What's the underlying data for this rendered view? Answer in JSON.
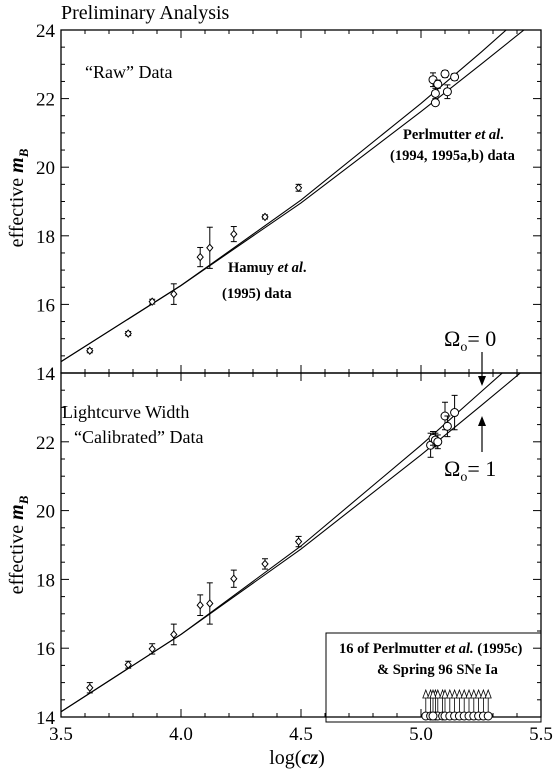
{
  "figure": {
    "header": "Preliminary Analysis",
    "xlabel": {
      "prefix": "log(",
      "var": "cz",
      "suffix": ")"
    }
  },
  "chart_data": [
    {
      "type": "scatter",
      "panel": "top",
      "ylabel": {
        "prefix": "effective ",
        "var": "m",
        "sub": "B"
      },
      "xlim": [
        3.5,
        5.5
      ],
      "ylim": [
        14,
        24
      ],
      "yticks": [
        14,
        16,
        18,
        20,
        22,
        24
      ],
      "panel_label": "“Raw” Data",
      "annotations": {
        "hamuy_1": "Hamuy ",
        "hamuy_et": "et al",
        "hamuy_dot": ".",
        "hamuy_2": "(1995) data",
        "perl_1": "Perlmutter ",
        "perl_et": "et al",
        "perl_dot": ".",
        "perl_2": "(1994, 1995a,b) data"
      },
      "series": [
        {
          "marker": "diamond",
          "points": [
            {
              "x": 3.62,
              "y": 14.65,
              "err": 0.06
            },
            {
              "x": 3.78,
              "y": 15.15,
              "err": 0.06
            },
            {
              "x": 3.88,
              "y": 16.08,
              "err": 0.07
            },
            {
              "x": 3.97,
              "y": 16.3,
              "err": 0.3
            },
            {
              "x": 4.08,
              "y": 17.38,
              "err": 0.28
            },
            {
              "x": 4.12,
              "y": 17.65,
              "err": 0.6
            },
            {
              "x": 4.22,
              "y": 18.05,
              "err": 0.22
            },
            {
              "x": 4.35,
              "y": 18.55,
              "err": 0.06
            },
            {
              "x": 4.49,
              "y": 19.4,
              "err": 0.1
            }
          ]
        },
        {
          "marker": "circle",
          "points": [
            {
              "x": 5.05,
              "y": 22.55,
              "err": 0.2
            },
            {
              "x": 5.06,
              "y": 22.15,
              "err": 0.15
            },
            {
              "x": 5.06,
              "y": 21.88,
              "err": 0.08
            },
            {
              "x": 5.07,
              "y": 22.42,
              "err": 0.12
            },
            {
              "x": 5.1,
              "y": 22.72,
              "err": 0.1
            },
            {
              "x": 5.11,
              "y": 22.2,
              "err": 0.2
            },
            {
              "x": 5.14,
              "y": 22.63,
              "err": 0.1
            }
          ]
        }
      ],
      "curves": [
        {
          "omega": 0,
          "points": [
            [
              3.5,
              14.33
            ],
            [
              4.0,
              16.55
            ],
            [
              4.5,
              19.04
            ],
            [
              5.0,
              21.86
            ],
            [
              5.25,
              23.35
            ],
            [
              5.5,
              24.9
            ]
          ]
        },
        {
          "omega": 1,
          "points": [
            [
              3.5,
              14.33
            ],
            [
              4.0,
              16.55
            ],
            [
              4.5,
              18.96
            ],
            [
              5.0,
              21.62
            ],
            [
              5.25,
              23.0
            ],
            [
              5.5,
              24.4
            ]
          ]
        }
      ]
    },
    {
      "type": "scatter",
      "panel": "bottom",
      "ylabel": {
        "prefix": "effective ",
        "var": "m",
        "sub": "B"
      },
      "xlim": [
        3.5,
        5.5
      ],
      "ylim": [
        14,
        24
      ],
      "yticks": [
        14,
        16,
        18,
        20,
        22
      ],
      "xticks": [
        3.5,
        4.0,
        4.5,
        5.0,
        5.5
      ],
      "panel_label_1": "Lightcurve Width",
      "panel_label_2": "“Calibrated” Data",
      "omega_labels": {
        "top": {
          "sym": "Ω",
          "sub": "o",
          "val": "= 0"
        },
        "bottom": {
          "sym": "Ω",
          "sub": "o",
          "val": "= 1"
        }
      },
      "legend_box": {
        "line1_a": "16 of Perlmutter ",
        "line1_et": "et al.",
        "line1_b": " (1995c)",
        "line2": "& Spring 96 SNe Ia"
      },
      "series": [
        {
          "marker": "diamond",
          "points": [
            {
              "x": 3.62,
              "y": 14.85,
              "err": 0.15
            },
            {
              "x": 3.78,
              "y": 15.52,
              "err": 0.1
            },
            {
              "x": 3.88,
              "y": 15.98,
              "err": 0.15
            },
            {
              "x": 3.97,
              "y": 16.4,
              "err": 0.3
            },
            {
              "x": 4.08,
              "y": 17.25,
              "err": 0.3
            },
            {
              "x": 4.12,
              "y": 17.3,
              "err": 0.6
            },
            {
              "x": 4.22,
              "y": 18.02,
              "err": 0.25
            },
            {
              "x": 4.35,
              "y": 18.45,
              "err": 0.15
            },
            {
              "x": 4.49,
              "y": 19.1,
              "err": 0.15
            }
          ]
        },
        {
          "marker": "circle",
          "points": [
            {
              "x": 5.04,
              "y": 21.9,
              "err": 0.35
            },
            {
              "x": 5.05,
              "y": 22.1,
              "err": 0.2
            },
            {
              "x": 5.06,
              "y": 22.05,
              "err": 0.2
            },
            {
              "x": 5.07,
              "y": 22.0,
              "err": 0.2
            },
            {
              "x": 5.1,
              "y": 22.75,
              "err": 0.4
            },
            {
              "x": 5.11,
              "y": 22.45,
              "err": 0.3
            },
            {
              "x": 5.14,
              "y": 22.85,
              "err": 0.5
            }
          ]
        },
        {
          "marker": "circle-limit",
          "x": [
            5.02,
            5.04,
            5.06,
            5.07,
            5.09,
            5.1,
            5.12,
            5.14,
            5.16,
            5.18,
            5.2,
            5.22,
            5.24,
            5.26,
            5.28,
            5.05
          ],
          "y": 14
        }
      ],
      "curves": [
        {
          "omega": 0,
          "points": [
            [
              3.5,
              14.15
            ],
            [
              4.0,
              16.4
            ],
            [
              4.5,
              18.97
            ],
            [
              5.0,
              21.9
            ],
            [
              5.25,
              23.45
            ],
            [
              5.5,
              25.0
            ]
          ]
        },
        {
          "omega": 1,
          "points": [
            [
              3.5,
              14.15
            ],
            [
              4.0,
              16.4
            ],
            [
              4.5,
              18.88
            ],
            [
              5.0,
              21.62
            ],
            [
              5.25,
              23.05
            ],
            [
              5.5,
              24.5
            ]
          ]
        }
      ]
    }
  ]
}
